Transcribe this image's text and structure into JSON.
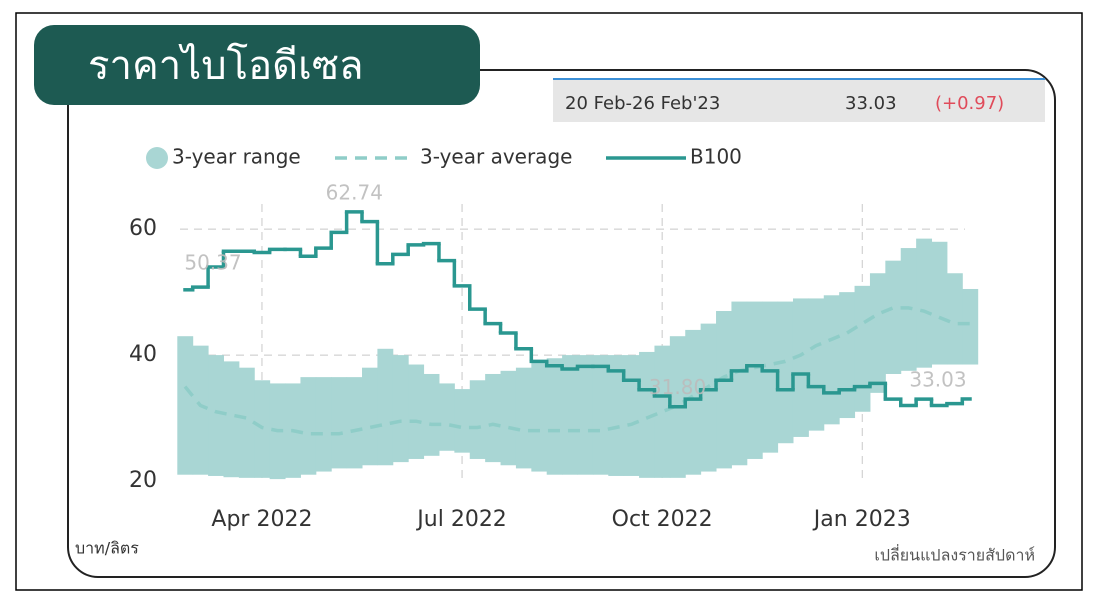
{
  "header": {
    "title": "ราคาไบโอดีเซล",
    "period": "20 Feb-26 Feb'23",
    "price": "33.03",
    "change": "(+0.97)"
  },
  "chart_data": {
    "type": "line",
    "y_unit": "บาท/ลิตร",
    "footnote": "เปลี่ยนแปลงรายสัปดาห์",
    "categories": [
      null,
      null,
      null,
      null,
      null,
      "Apr 2022",
      null,
      null,
      null,
      null,
      null,
      null,
      null,
      null,
      null,
      null,
      null,
      null,
      "Jul 2022",
      null,
      null,
      null,
      null,
      null,
      null,
      null,
      null,
      null,
      null,
      null,
      null,
      "Oct 2022",
      null,
      null,
      null,
      null,
      null,
      null,
      null,
      null,
      null,
      null,
      null,
      null,
      "Jan 2023",
      null,
      null,
      null,
      null,
      null,
      null,
      null
    ],
    "series": [
      {
        "name": "3-year range",
        "color": "#a9d6d4",
        "low": [
          21,
          21,
          20.8,
          20.6,
          20.5,
          20.5,
          20.3,
          20.5,
          21,
          21.5,
          22,
          22,
          22.5,
          22.5,
          23,
          23.5,
          24,
          24.8,
          24.5,
          23.5,
          23,
          22.5,
          22,
          21.5,
          21,
          21,
          21,
          21,
          20.8,
          20.8,
          20.5,
          20.5,
          20.5,
          21,
          21.5,
          22,
          22.5,
          23.5,
          24.5,
          26,
          27,
          28,
          29,
          30,
          31,
          34,
          37,
          37.5,
          38,
          38.5,
          38.5,
          38.5
        ],
        "high": [
          43,
          41.5,
          40,
          39,
          38,
          36,
          35.5,
          35.5,
          36.5,
          36.5,
          36.5,
          36.5,
          38,
          41,
          40,
          38.5,
          37,
          35.5,
          34.6,
          36,
          37,
          37.5,
          38,
          39,
          39.5,
          40,
          40,
          40,
          40,
          40,
          40.5,
          41.5,
          43,
          44,
          45,
          47,
          48.5,
          48.5,
          48.5,
          48.5,
          49,
          49,
          49.5,
          50,
          51,
          53,
          55,
          57,
          58.5,
          58,
          53,
          50.5
        ]
      },
      {
        "name": "3-year average",
        "color": "#8fcdc8",
        "values": [
          35,
          32,
          31,
          30.5,
          30,
          28.5,
          28,
          28,
          27.5,
          27.5,
          27.5,
          28,
          28.5,
          29,
          29.5,
          29.5,
          29,
          29,
          28.5,
          28.5,
          29,
          28.5,
          28,
          28,
          28,
          28,
          28,
          28,
          28.5,
          29,
          30,
          31,
          32,
          33.5,
          35,
          36.5,
          37.5,
          38,
          38.5,
          39,
          40,
          41.5,
          42.5,
          43.5,
          45,
          46.5,
          47.5,
          47.5,
          47,
          46,
          45,
          45
        ]
      },
      {
        "name": "B100",
        "color": "#2a9790",
        "values": [
          50.37,
          50.8,
          54,
          56.5,
          56.5,
          56.3,
          56.8,
          56.8,
          55.7,
          57,
          59.5,
          62.74,
          61.2,
          54.5,
          56,
          57.5,
          57.7,
          55,
          51,
          47.3,
          45,
          43.5,
          41,
          39,
          38.3,
          37.8,
          38.2,
          38.2,
          37.5,
          36,
          34.5,
          33.5,
          31.8,
          33,
          34.5,
          36,
          37.5,
          38.3,
          37.5,
          34.5,
          37,
          35,
          34,
          34.5,
          35,
          35.5,
          33,
          32,
          33,
          32,
          32.3,
          33.03
        ],
        "value_labels": [
          "50.37",
          null,
          null,
          null,
          null,
          null,
          null,
          null,
          null,
          null,
          null,
          "62.74",
          null,
          null,
          null,
          null,
          null,
          null,
          null,
          null,
          null,
          null,
          null,
          null,
          null,
          null,
          null,
          null,
          null,
          null,
          null,
          null,
          "31.80",
          null,
          null,
          null,
          null,
          null,
          null,
          null,
          null,
          null,
          null,
          null,
          null,
          null,
          null,
          null,
          null,
          null,
          null,
          "33.03"
        ]
      }
    ],
    "ylim": [
      20,
      64
    ],
    "yticks": [
      20,
      40,
      60
    ],
    "grid": true
  }
}
